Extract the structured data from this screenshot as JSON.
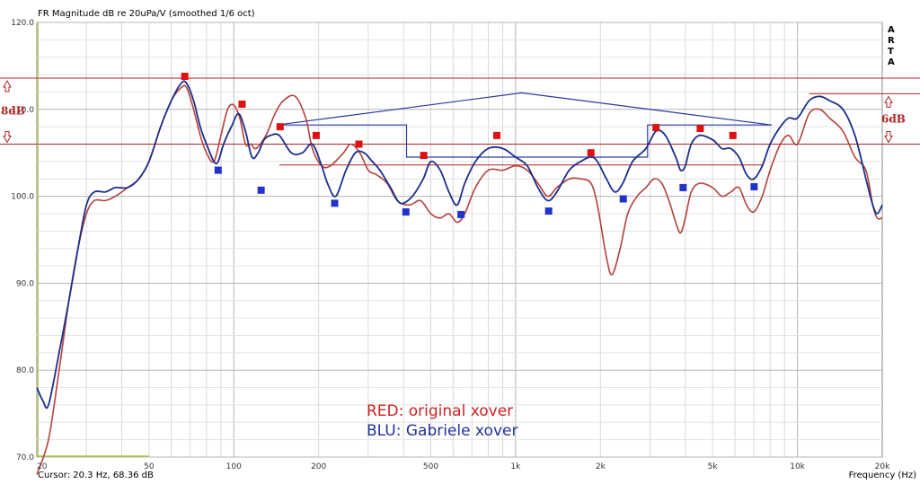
{
  "chart_data": {
    "type": "line",
    "title": "FR Magnitude dB re 20uPa/V (smoothed 1/6 oct)",
    "xlabel": "Frequency (Hz)",
    "xscale": "log",
    "xlim": [
      20,
      20000
    ],
    "ylim": [
      70,
      120
    ],
    "grid": true,
    "x_tick_labels": [
      {
        "v": 20,
        "label": "20"
      },
      {
        "v": 50,
        "label": "50"
      },
      {
        "v": 100,
        "label": "100"
      },
      {
        "v": 200,
        "label": "200"
      },
      {
        "v": 500,
        "label": "500"
      },
      {
        "v": 1000,
        "label": "1k"
      },
      {
        "v": 2000,
        "label": "2k"
      },
      {
        "v": 5000,
        "label": "5k"
      },
      {
        "v": 10000,
        "label": "10k"
      },
      {
        "v": 20000,
        "label": "20k"
      }
    ],
    "y_tick_labels": [
      {
        "v": 120,
        "label": "120.0"
      },
      {
        "v": 110,
        "label": "110.0"
      },
      {
        "v": 100,
        "label": "100.0"
      },
      {
        "v": 90,
        "label": "90.0"
      },
      {
        "v": 80,
        "label": "80.0"
      },
      {
        "v": 70,
        "label": "70.0"
      }
    ],
    "cursor_text": "Cursor: 20.3 Hz, 68.36 dB",
    "brand_letters": [
      "A",
      "R",
      "T",
      "A"
    ],
    "series": [
      {
        "name": "RED: original xover",
        "color": "#b5403a",
        "marker_color": "#dd1111",
        "points": [
          [
            20,
            68
          ],
          [
            22,
            72
          ],
          [
            24,
            80
          ],
          [
            26,
            88
          ],
          [
            28,
            94
          ],
          [
            30,
            98
          ],
          [
            32,
            99.5
          ],
          [
            35,
            99.5
          ],
          [
            38,
            100
          ],
          [
            42,
            101
          ],
          [
            46,
            102
          ],
          [
            50,
            104
          ],
          [
            55,
            108
          ],
          [
            60,
            111
          ],
          [
            65,
            112.5
          ],
          [
            68,
            112.5
          ],
          [
            72,
            110
          ],
          [
            76,
            107
          ],
          [
            80,
            105
          ],
          [
            85,
            104
          ],
          [
            90,
            107
          ],
          [
            95,
            110
          ],
          [
            100,
            110.5
          ],
          [
            105,
            109
          ],
          [
            110,
            106
          ],
          [
            115,
            106
          ],
          [
            120,
            105.5
          ],
          [
            130,
            107
          ],
          [
            140,
            109.5
          ],
          [
            150,
            111
          ],
          [
            165,
            111.5
          ],
          [
            180,
            109
          ],
          [
            190,
            105.5
          ],
          [
            205,
            103.5
          ],
          [
            220,
            103.5
          ],
          [
            245,
            105
          ],
          [
            260,
            106
          ],
          [
            280,
            105
          ],
          [
            300,
            103
          ],
          [
            320,
            102.5
          ],
          [
            350,
            101.5
          ],
          [
            380,
            99.5
          ],
          [
            420,
            99
          ],
          [
            460,
            99.5
          ],
          [
            500,
            98
          ],
          [
            540,
            97.5
          ],
          [
            580,
            98
          ],
          [
            620,
            97
          ],
          [
            660,
            98
          ],
          [
            720,
            101
          ],
          [
            800,
            103
          ],
          [
            900,
            103
          ],
          [
            1000,
            103.5
          ],
          [
            1100,
            103
          ],
          [
            1200,
            101.5
          ],
          [
            1300,
            100
          ],
          [
            1400,
            101
          ],
          [
            1550,
            102
          ],
          [
            1700,
            102
          ],
          [
            1850,
            101.5
          ],
          [
            1950,
            99
          ],
          [
            2100,
            93
          ],
          [
            2200,
            91
          ],
          [
            2350,
            94
          ],
          [
            2500,
            98
          ],
          [
            2700,
            100
          ],
          [
            2900,
            101
          ],
          [
            3100,
            102
          ],
          [
            3300,
            101.5
          ],
          [
            3500,
            99.5
          ],
          [
            3700,
            97
          ],
          [
            3850,
            95.8
          ],
          [
            4000,
            97.5
          ],
          [
            4200,
            100.5
          ],
          [
            4500,
            101.5
          ],
          [
            5000,
            101
          ],
          [
            5400,
            100
          ],
          [
            5800,
            100.5
          ],
          [
            6200,
            101
          ],
          [
            6600,
            99
          ],
          [
            7000,
            98.2
          ],
          [
            7500,
            100
          ],
          [
            8000,
            103
          ],
          [
            8700,
            106
          ],
          [
            9300,
            107
          ],
          [
            10000,
            106
          ],
          [
            11000,
            109.5
          ],
          [
            12000,
            110
          ],
          [
            13000,
            109
          ],
          [
            14500,
            107.5
          ],
          [
            16000,
            104.5
          ],
          [
            17500,
            103
          ],
          [
            18500,
            99
          ],
          [
            19200,
            97.5
          ],
          [
            20000,
            97.5
          ]
        ],
        "markers": [
          [
            67,
            113.8
          ],
          [
            107,
            110.6
          ],
          [
            146,
            108
          ],
          [
            196,
            107
          ],
          [
            278,
            106
          ],
          [
            472,
            104.7
          ],
          [
            858,
            107
          ],
          [
            1850,
            105
          ],
          [
            3150,
            107.9
          ],
          [
            4520,
            107.8
          ],
          [
            5900,
            107
          ]
        ]
      },
      {
        "name": "BLU: Gabriele xover",
        "color": "#1c2f8a",
        "marker_color": "#2233cc",
        "points": [
          [
            20,
            78
          ],
          [
            21,
            76.5
          ],
          [
            22,
            76
          ],
          [
            24,
            82
          ],
          [
            26,
            88
          ],
          [
            28,
            94
          ],
          [
            30,
            99
          ],
          [
            32,
            100.5
          ],
          [
            35,
            100.5
          ],
          [
            38,
            101
          ],
          [
            42,
            101
          ],
          [
            46,
            102
          ],
          [
            50,
            104
          ],
          [
            55,
            108
          ],
          [
            60,
            111
          ],
          [
            65,
            113
          ],
          [
            68,
            113
          ],
          [
            72,
            111
          ],
          [
            76,
            108
          ],
          [
            80,
            106
          ],
          [
            85,
            104
          ],
          [
            88,
            104
          ],
          [
            92,
            106
          ],
          [
            98,
            108
          ],
          [
            104,
            109.5
          ],
          [
            110,
            107.5
          ],
          [
            116,
            104.5
          ],
          [
            122,
            105
          ],
          [
            128,
            106.5
          ],
          [
            135,
            107
          ],
          [
            145,
            107
          ],
          [
            160,
            105
          ],
          [
            175,
            105
          ],
          [
            190,
            106
          ],
          [
            205,
            103.5
          ],
          [
            215,
            101.5
          ],
          [
            230,
            100
          ],
          [
            250,
            103
          ],
          [
            270,
            105
          ],
          [
            290,
            105
          ],
          [
            310,
            104
          ],
          [
            330,
            103
          ],
          [
            360,
            101
          ],
          [
            390,
            99.2
          ],
          [
            430,
            100
          ],
          [
            470,
            102
          ],
          [
            500,
            104
          ],
          [
            540,
            103
          ],
          [
            580,
            100.5
          ],
          [
            620,
            99
          ],
          [
            660,
            101.5
          ],
          [
            720,
            104
          ],
          [
            800,
            105.5
          ],
          [
            900,
            105.5
          ],
          [
            1000,
            104.5
          ],
          [
            1100,
            103.5
          ],
          [
            1200,
            101
          ],
          [
            1300,
            99.5
          ],
          [
            1400,
            100.5
          ],
          [
            1550,
            103
          ],
          [
            1700,
            104
          ],
          [
            1850,
            104.5
          ],
          [
            1950,
            104
          ],
          [
            2100,
            102
          ],
          [
            2250,
            100.5
          ],
          [
            2400,
            101.5
          ],
          [
            2600,
            104
          ],
          [
            2900,
            105.5
          ],
          [
            3150,
            107.5
          ],
          [
            3400,
            107
          ],
          [
            3700,
            104.5
          ],
          [
            3850,
            103
          ],
          [
            4000,
            103.5
          ],
          [
            4200,
            106
          ],
          [
            4500,
            107
          ],
          [
            5000,
            106.5
          ],
          [
            5400,
            105.5
          ],
          [
            5800,
            105.5
          ],
          [
            6200,
            104.5
          ],
          [
            6600,
            102.5
          ],
          [
            7000,
            102
          ],
          [
            7500,
            103.5
          ],
          [
            8000,
            106
          ],
          [
            8700,
            108
          ],
          [
            9300,
            109
          ],
          [
            10000,
            109
          ],
          [
            11000,
            111
          ],
          [
            12000,
            111.5
          ],
          [
            13000,
            111
          ],
          [
            14500,
            110
          ],
          [
            16000,
            107
          ],
          [
            17500,
            102
          ],
          [
            18500,
            99
          ],
          [
            19200,
            98
          ],
          [
            20000,
            99
          ]
        ],
        "markers": [
          [
            88,
            103
          ],
          [
            125,
            100.7
          ],
          [
            228,
            99.2
          ],
          [
            408,
            98.2
          ],
          [
            640,
            97.9
          ],
          [
            1310,
            98.3
          ],
          [
            2410,
            99.7
          ],
          [
            3930,
            101
          ],
          [
            7020,
            101.1
          ]
        ]
      }
    ],
    "blue_outline_path": [
      [
        142,
        108.2
      ],
      [
        410,
        108.2
      ],
      [
        410,
        104.5
      ],
      [
        2940,
        104.5
      ],
      [
        2940,
        108.2
      ],
      [
        8100,
        108.2
      ]
    ],
    "blue_triangle": [
      [
        142,
        108.2
      ],
      [
        1050,
        111.9
      ],
      [
        8100,
        108.2
      ]
    ],
    "red_reference_lines": [
      {
        "x": [
          14,
          1015
        ],
        "y": 113.6
      },
      {
        "x": [
          14,
          1015
        ],
        "y": 106
      },
      {
        "x": [
          145,
          7600
        ],
        "y": 103.6
      },
      {
        "x": [
          11000,
          1015
        ],
        "y": 111.8
      }
    ],
    "gain_labels": [
      {
        "side": "left",
        "text": "8dB"
      },
      {
        "side": "right",
        "text": "6dB"
      }
    ],
    "annotations": [
      {
        "text": "RED: original xover",
        "color": "#cc2222"
      },
      {
        "text": "BLU: Gabriele xover",
        "color": "#223399"
      }
    ]
  }
}
